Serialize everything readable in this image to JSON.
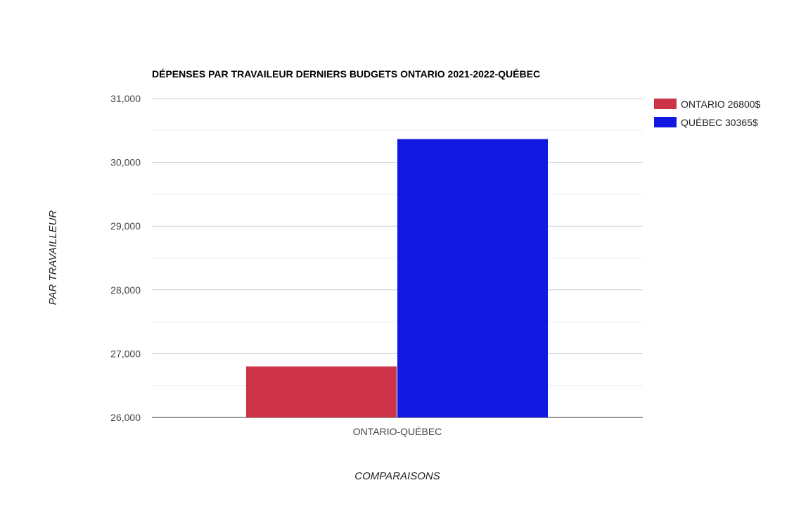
{
  "chart_data": {
    "type": "bar",
    "title": "DÉPENSES PAR TRAVAILEUR DERNIERS BUDGETS ONTARIO 2021-2022-QUÉBEC",
    "xlabel": "COMPARAISONS",
    "ylabel": "PAR TRAVAILLEUR",
    "categories": [
      "ONTARIO-QUÉBEC"
    ],
    "series": [
      {
        "name": "ONTARIO 26800$",
        "values": [
          26800
        ],
        "color": "#cc3349"
      },
      {
        "name": "QUÉBEC 30365$",
        "values": [
          30365
        ],
        "color": "#1119e0"
      }
    ],
    "ylim": [
      26000,
      31000
    ],
    "yticks": [
      26000,
      27000,
      28000,
      29000,
      30000,
      31000
    ],
    "ytick_labels": [
      "26,000",
      "27,000",
      "28,000",
      "29,000",
      "30,000",
      "31,000"
    ],
    "grid": true,
    "minor_grid": true,
    "legend_position": "right"
  }
}
